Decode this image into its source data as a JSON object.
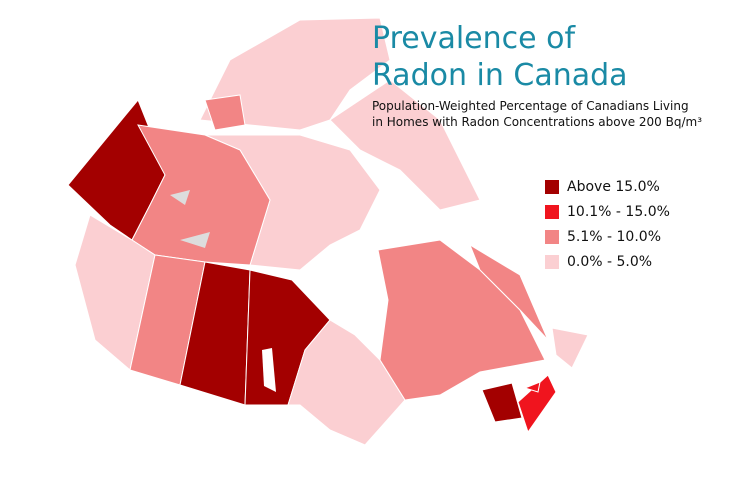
{
  "title_lines": [
    "Prevalence of",
    "Radon in Canada"
  ],
  "subtitle_lines": [
    "Population-Weighted Percentage of Canadians Living",
    "in Homes with Radon Concentrations above 200 Bq/m³"
  ],
  "legend": [
    {
      "label": "Above 15.0%",
      "color": "#a30000"
    },
    {
      "label": "10.1% - 15.0%",
      "color": "#f0141e"
    },
    {
      "label": "5.1% - 10.0%",
      "color": "#f28585"
    },
    {
      "label": "0.0% - 5.0%",
      "color": "#fbcfd2"
    }
  ]
}
